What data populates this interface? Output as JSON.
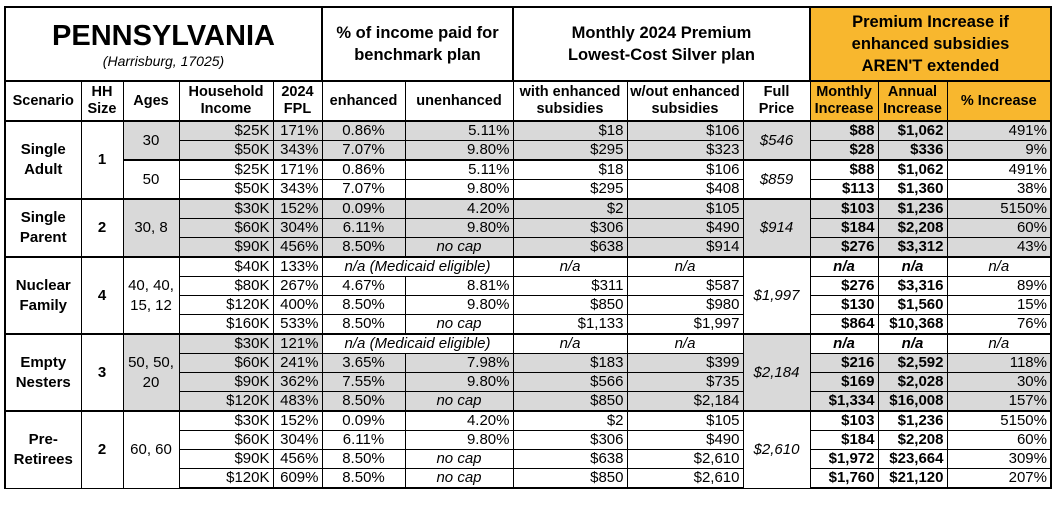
{
  "header": {
    "state": "PENNSYLVANIA",
    "location": "(Harrisburg, 17025)",
    "pct_income_group": "% of income paid for benchmark plan",
    "premium_group": "Monthly 2024 Premium Lowest-Cost Silver plan",
    "increase_group": "Premium Increase if enhanced subsidies AREN'T extended"
  },
  "columns": [
    "Scenario",
    "HH Size",
    "Ages",
    "Household Income",
    "2024 FPL",
    "enhanced",
    "unenhanced",
    "with enhanced subsidies",
    "w/out enhanced subsidies",
    "Full Price",
    "Monthly Increase",
    "Annual Increase",
    "% Increase"
  ],
  "colors": {
    "increase_header": "#F8B72E",
    "shaded_row": "#D9D9D9"
  },
  "groups": [
    {
      "scenario": "Single Adult",
      "hh": "1",
      "subgroups": [
        {
          "ages": "30",
          "full_price": "$546",
          "shaded": true,
          "rows": [
            [
              "$25K",
              "171%",
              "0.86%",
              "5.11%",
              "$18",
              "$106",
              "$88",
              "$1,062",
              "491%"
            ],
            [
              "$50K",
              "343%",
              "7.07%",
              "9.80%",
              "$295",
              "$323",
              "$28",
              "$336",
              "9%"
            ]
          ]
        },
        {
          "ages": "50",
          "full_price": "$859",
          "shaded": false,
          "rows": [
            [
              "$25K",
              "171%",
              "0.86%",
              "5.11%",
              "$18",
              "$106",
              "$88",
              "$1,062",
              "491%"
            ],
            [
              "$50K",
              "343%",
              "7.07%",
              "9.80%",
              "$295",
              "$408",
              "$113",
              "$1,360",
              "38%"
            ]
          ]
        }
      ]
    },
    {
      "scenario": "Single Parent",
      "hh": "2",
      "subgroups": [
        {
          "ages": "30, 8",
          "full_price": "$914",
          "shaded": true,
          "rows": [
            [
              "$30K",
              "152%",
              "0.09%",
              "4.20%",
              "$2",
              "$105",
              "$103",
              "$1,236",
              "5150%"
            ],
            [
              "$60K",
              "304%",
              "6.11%",
              "9.80%",
              "$306",
              "$490",
              "$184",
              "$2,208",
              "60%"
            ],
            [
              "$90K",
              "456%",
              "8.50%",
              "no cap",
              "$638",
              "$914",
              "$276",
              "$3,312",
              "43%"
            ]
          ]
        }
      ]
    },
    {
      "scenario": "Nuclear Family",
      "hh": "4",
      "subgroups": [
        {
          "ages": "40, 40, 15, 12",
          "full_price": "$1,997",
          "shaded": false,
          "rows": [
            [
              "$40K",
              "133%",
              "n/a (Medicaid eligible)",
              null,
              "n/a",
              "n/a",
              "n/a",
              "n/a",
              "n/a"
            ],
            [
              "$80K",
              "267%",
              "4.67%",
              "8.81%",
              "$311",
              "$587",
              "$276",
              "$3,316",
              "89%"
            ],
            [
              "$120K",
              "400%",
              "8.50%",
              "9.80%",
              "$850",
              "$980",
              "$130",
              "$1,560",
              "15%"
            ],
            [
              "$160K",
              "533%",
              "8.50%",
              "no cap",
              "$1,133",
              "$1,997",
              "$864",
              "$10,368",
              "76%"
            ]
          ]
        }
      ]
    },
    {
      "scenario": "Empty Nesters",
      "hh": "3",
      "subgroups": [
        {
          "ages": "50, 50, 20",
          "full_price": "$2,184",
          "shaded": true,
          "rows": [
            [
              "$30K",
              "121%",
              "n/a (Medicaid eligible)",
              null,
              "n/a",
              "n/a",
              "n/a",
              "n/a",
              "n/a"
            ],
            [
              "$60K",
              "241%",
              "3.65%",
              "7.98%",
              "$183",
              "$399",
              "$216",
              "$2,592",
              "118%"
            ],
            [
              "$90K",
              "362%",
              "7.55%",
              "9.80%",
              "$566",
              "$735",
              "$169",
              "$2,028",
              "30%"
            ],
            [
              "$120K",
              "483%",
              "8.50%",
              "no cap",
              "$850",
              "$2,184",
              "$1,334",
              "$16,008",
              "157%"
            ]
          ]
        }
      ]
    },
    {
      "scenario": "Pre-Retirees",
      "hh": "2",
      "subgroups": [
        {
          "ages": "60, 60",
          "full_price": "$2,610",
          "shaded": false,
          "rows": [
            [
              "$30K",
              "152%",
              "0.09%",
              "4.20%",
              "$2",
              "$105",
              "$103",
              "$1,236",
              "5150%"
            ],
            [
              "$60K",
              "304%",
              "6.11%",
              "9.80%",
              "$306",
              "$490",
              "$184",
              "$2,208",
              "60%"
            ],
            [
              "$90K",
              "456%",
              "8.50%",
              "no cap",
              "$638",
              "$2,610",
              "$1,972",
              "$23,664",
              "309%"
            ],
            [
              "$120K",
              "609%",
              "8.50%",
              "no cap",
              "$850",
              "$2,610",
              "$1,760",
              "$21,120",
              "207%"
            ]
          ]
        }
      ]
    }
  ]
}
